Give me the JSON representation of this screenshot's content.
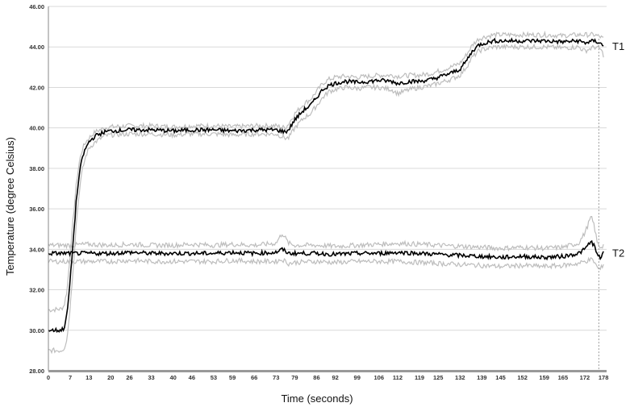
{
  "chart_data": {
    "type": "line",
    "xlabel": "Time (seconds)",
    "ylabel": "Temperature (degree Celsius)",
    "xlim": [
      0,
      179
    ],
    "ylim": [
      28,
      46
    ],
    "x_ticks": [
      "0",
      "7",
      "13",
      "20",
      "26",
      "33",
      "40",
      "46",
      "53",
      "59",
      "66",
      "73",
      "79",
      "86",
      "92",
      "99",
      "106",
      "112",
      "119",
      "125",
      "132",
      "139",
      "145",
      "152",
      "159",
      "165",
      "172",
      "178"
    ],
    "y_ticks": [
      "28.00",
      "30.00",
      "32.00",
      "34.00",
      "36.00",
      "38.00",
      "40.00",
      "42.00",
      "44.00",
      "46.00"
    ],
    "grid": "horizontal",
    "series": [
      {
        "name": "T1",
        "color": "#000000",
        "points": [
          [
            0,
            30.0
          ],
          [
            4,
            30.0
          ],
          [
            5,
            30.1
          ],
          [
            6,
            30.8
          ],
          [
            7,
            32.5
          ],
          [
            8,
            34.5
          ],
          [
            9,
            36.5
          ],
          [
            10,
            37.8
          ],
          [
            11,
            38.6
          ],
          [
            12,
            39.0
          ],
          [
            13,
            39.3
          ],
          [
            15,
            39.6
          ],
          [
            18,
            39.8
          ],
          [
            20,
            39.85
          ],
          [
            26,
            39.9
          ],
          [
            33,
            39.9
          ],
          [
            40,
            39.85
          ],
          [
            46,
            39.9
          ],
          [
            53,
            39.9
          ],
          [
            59,
            39.85
          ],
          [
            66,
            39.9
          ],
          [
            73,
            39.9
          ],
          [
            76,
            39.8
          ],
          [
            77,
            39.9
          ],
          [
            79,
            40.4
          ],
          [
            82,
            40.9
          ],
          [
            84,
            41.1
          ],
          [
            86,
            41.5
          ],
          [
            88,
            41.9
          ],
          [
            90,
            42.1
          ],
          [
            92,
            42.2
          ],
          [
            95,
            42.3
          ],
          [
            99,
            42.25
          ],
          [
            103,
            42.3
          ],
          [
            106,
            42.35
          ],
          [
            110,
            42.3
          ],
          [
            112,
            42.2
          ],
          [
            116,
            42.3
          ],
          [
            119,
            42.3
          ],
          [
            123,
            42.4
          ],
          [
            125,
            42.5
          ],
          [
            129,
            42.7
          ],
          [
            132,
            42.9
          ],
          [
            134,
            43.3
          ],
          [
            136,
            43.8
          ],
          [
            138,
            44.1
          ],
          [
            140,
            44.2
          ],
          [
            143,
            44.3
          ],
          [
            145,
            44.3
          ],
          [
            152,
            44.3
          ],
          [
            159,
            44.3
          ],
          [
            165,
            44.25
          ],
          [
            170,
            44.3
          ],
          [
            172,
            44.2
          ],
          [
            175,
            44.3
          ],
          [
            177,
            44.2
          ],
          [
            178,
            44.0
          ]
        ]
      },
      {
        "name": "T2",
        "color": "#000000",
        "points": [
          [
            0,
            33.8
          ],
          [
            7,
            33.8
          ],
          [
            13,
            33.8
          ],
          [
            20,
            33.8
          ],
          [
            26,
            33.85
          ],
          [
            33,
            33.8
          ],
          [
            40,
            33.8
          ],
          [
            46,
            33.8
          ],
          [
            53,
            33.8
          ],
          [
            59,
            33.85
          ],
          [
            66,
            33.8
          ],
          [
            73,
            33.85
          ],
          [
            75,
            34.0
          ],
          [
            77,
            33.8
          ],
          [
            79,
            33.8
          ],
          [
            86,
            33.8
          ],
          [
            92,
            33.75
          ],
          [
            99,
            33.8
          ],
          [
            106,
            33.8
          ],
          [
            112,
            33.85
          ],
          [
            119,
            33.8
          ],
          [
            125,
            33.75
          ],
          [
            132,
            33.7
          ],
          [
            139,
            33.65
          ],
          [
            145,
            33.6
          ],
          [
            152,
            33.65
          ],
          [
            159,
            33.6
          ],
          [
            165,
            33.65
          ],
          [
            170,
            33.8
          ],
          [
            172,
            34.0
          ],
          [
            174,
            34.4
          ],
          [
            175,
            34.2
          ],
          [
            176,
            33.7
          ],
          [
            177,
            33.6
          ],
          [
            178,
            33.8
          ]
        ]
      }
    ],
    "bands": [
      {
        "parent": "T1",
        "color": "#bdbdbd",
        "upper": [
          [
            0,
            31.0
          ],
          [
            4,
            31.05
          ],
          [
            5,
            31.2
          ],
          [
            6,
            32.0
          ],
          [
            7,
            33.8
          ],
          [
            8,
            35.6
          ],
          [
            9,
            37.3
          ],
          [
            10,
            38.4
          ],
          [
            11,
            39.0
          ],
          [
            12,
            39.3
          ],
          [
            13,
            39.5
          ],
          [
            15,
            39.8
          ],
          [
            18,
            40.0
          ],
          [
            20,
            40.05
          ],
          [
            26,
            40.1
          ],
          [
            33,
            40.1
          ],
          [
            40,
            40.05
          ],
          [
            46,
            40.1
          ],
          [
            53,
            40.1
          ],
          [
            59,
            40.05
          ],
          [
            66,
            40.1
          ],
          [
            73,
            40.1
          ],
          [
            76,
            40.0
          ],
          [
            77,
            40.2
          ],
          [
            79,
            40.7
          ],
          [
            82,
            41.2
          ],
          [
            84,
            41.4
          ],
          [
            86,
            41.8
          ],
          [
            88,
            42.2
          ],
          [
            90,
            42.4
          ],
          [
            92,
            42.5
          ],
          [
            95,
            42.55
          ],
          [
            99,
            42.5
          ],
          [
            103,
            42.55
          ],
          [
            106,
            42.6
          ],
          [
            110,
            42.6
          ],
          [
            112,
            42.55
          ],
          [
            116,
            42.6
          ],
          [
            119,
            42.6
          ],
          [
            123,
            42.7
          ],
          [
            125,
            42.8
          ],
          [
            129,
            43.0
          ],
          [
            132,
            43.2
          ],
          [
            134,
            43.6
          ],
          [
            136,
            44.1
          ],
          [
            138,
            44.4
          ],
          [
            140,
            44.5
          ],
          [
            143,
            44.6
          ],
          [
            145,
            44.6
          ],
          [
            152,
            44.6
          ],
          [
            159,
            44.6
          ],
          [
            165,
            44.55
          ],
          [
            170,
            44.6
          ],
          [
            172,
            44.6
          ],
          [
            175,
            44.6
          ],
          [
            177,
            44.5
          ],
          [
            178,
            44.4
          ]
        ],
        "lower": [
          [
            0,
            29.0
          ],
          [
            4,
            29.0
          ],
          [
            5,
            29.1
          ],
          [
            6,
            29.6
          ],
          [
            7,
            31.2
          ],
          [
            8,
            33.2
          ],
          [
            9,
            35.4
          ],
          [
            10,
            37.0
          ],
          [
            11,
            38.0
          ],
          [
            12,
            38.6
          ],
          [
            13,
            39.0
          ],
          [
            15,
            39.3
          ],
          [
            18,
            39.6
          ],
          [
            20,
            39.65
          ],
          [
            26,
            39.7
          ],
          [
            33,
            39.7
          ],
          [
            40,
            39.65
          ],
          [
            46,
            39.7
          ],
          [
            53,
            39.7
          ],
          [
            59,
            39.65
          ],
          [
            66,
            39.7
          ],
          [
            73,
            39.7
          ],
          [
            76,
            39.5
          ],
          [
            77,
            39.5
          ],
          [
            79,
            40.0
          ],
          [
            82,
            40.5
          ],
          [
            84,
            40.7
          ],
          [
            86,
            41.1
          ],
          [
            88,
            41.5
          ],
          [
            90,
            41.8
          ],
          [
            92,
            41.9
          ],
          [
            95,
            42.0
          ],
          [
            99,
            41.95
          ],
          [
            103,
            42.0
          ],
          [
            106,
            42.0
          ],
          [
            110,
            41.9
          ],
          [
            112,
            41.7
          ],
          [
            116,
            41.9
          ],
          [
            119,
            42.0
          ],
          [
            123,
            42.1
          ],
          [
            125,
            42.2
          ],
          [
            129,
            42.4
          ],
          [
            132,
            42.6
          ],
          [
            134,
            43.0
          ],
          [
            136,
            43.5
          ],
          [
            138,
            43.8
          ],
          [
            140,
            43.9
          ],
          [
            143,
            44.0
          ],
          [
            145,
            44.0
          ],
          [
            152,
            44.0
          ],
          [
            159,
            44.0
          ],
          [
            165,
            43.95
          ],
          [
            170,
            44.0
          ],
          [
            172,
            43.8
          ],
          [
            175,
            44.0
          ],
          [
            177,
            43.9
          ],
          [
            178,
            43.6
          ]
        ]
      },
      {
        "parent": "T2",
        "color": "#bdbdbd",
        "upper": [
          [
            0,
            34.2
          ],
          [
            7,
            34.2
          ],
          [
            13,
            34.25
          ],
          [
            20,
            34.2
          ],
          [
            26,
            34.25
          ],
          [
            33,
            34.2
          ],
          [
            40,
            34.2
          ],
          [
            46,
            34.25
          ],
          [
            53,
            34.2
          ],
          [
            59,
            34.25
          ],
          [
            66,
            34.2
          ],
          [
            73,
            34.3
          ],
          [
            75,
            34.8
          ],
          [
            77,
            34.3
          ],
          [
            79,
            34.2
          ],
          [
            86,
            34.2
          ],
          [
            92,
            34.15
          ],
          [
            99,
            34.2
          ],
          [
            106,
            34.25
          ],
          [
            112,
            34.3
          ],
          [
            119,
            34.25
          ],
          [
            125,
            34.2
          ],
          [
            132,
            34.15
          ],
          [
            139,
            34.1
          ],
          [
            145,
            34.05
          ],
          [
            152,
            34.1
          ],
          [
            159,
            34.05
          ],
          [
            165,
            34.1
          ],
          [
            170,
            34.3
          ],
          [
            172,
            34.8
          ],
          [
            174,
            35.6
          ],
          [
            175,
            35.2
          ],
          [
            176,
            34.3
          ],
          [
            177,
            34.1
          ],
          [
            178,
            34.2
          ]
        ],
        "lower": [
          [
            0,
            33.4
          ],
          [
            7,
            33.4
          ],
          [
            13,
            33.4
          ],
          [
            20,
            33.4
          ],
          [
            26,
            33.45
          ],
          [
            33,
            33.4
          ],
          [
            40,
            33.4
          ],
          [
            46,
            33.4
          ],
          [
            53,
            33.4
          ],
          [
            59,
            33.45
          ],
          [
            66,
            33.4
          ],
          [
            73,
            33.4
          ],
          [
            75,
            33.5
          ],
          [
            77,
            33.3
          ],
          [
            79,
            33.35
          ],
          [
            86,
            33.4
          ],
          [
            92,
            33.35
          ],
          [
            99,
            33.4
          ],
          [
            106,
            33.4
          ],
          [
            112,
            33.4
          ],
          [
            119,
            33.35
          ],
          [
            125,
            33.3
          ],
          [
            132,
            33.25
          ],
          [
            139,
            33.2
          ],
          [
            145,
            33.15
          ],
          [
            152,
            33.2
          ],
          [
            159,
            33.15
          ],
          [
            165,
            33.2
          ],
          [
            170,
            33.3
          ],
          [
            172,
            33.4
          ],
          [
            174,
            33.5
          ],
          [
            175,
            33.4
          ],
          [
            176,
            33.1
          ],
          [
            177,
            33.0
          ],
          [
            178,
            33.3
          ]
        ]
      }
    ],
    "marker_line": {
      "x": 176.5,
      "color": "#999999"
    }
  }
}
